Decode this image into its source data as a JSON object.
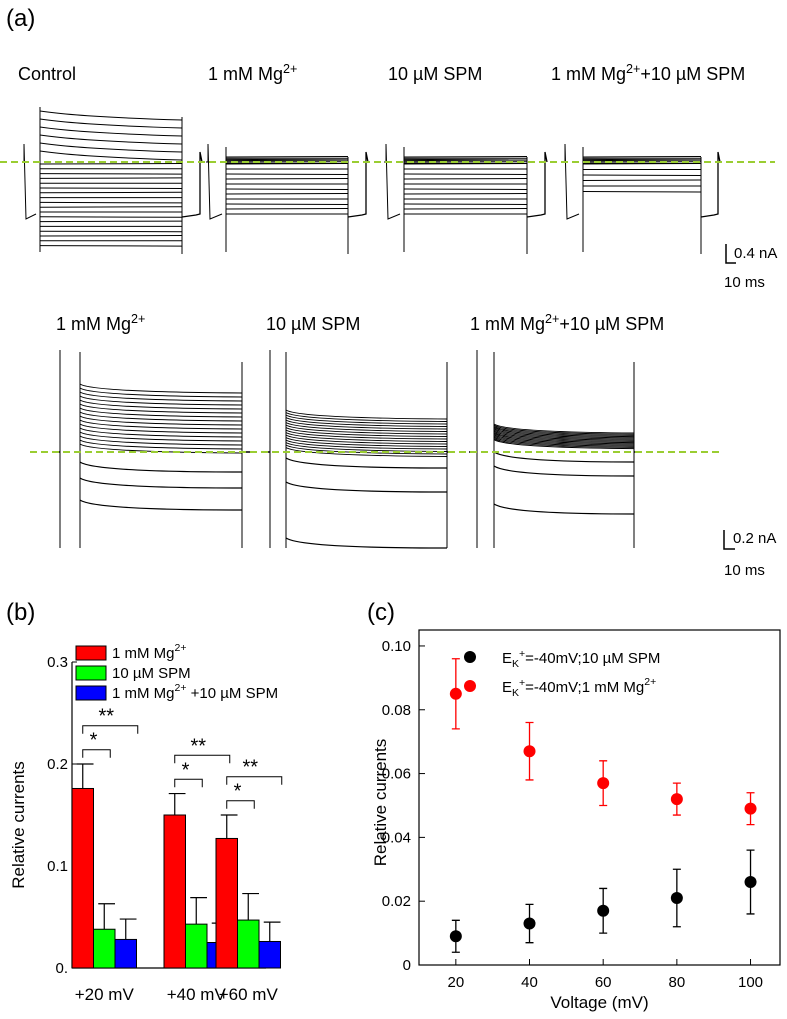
{
  "panels": {
    "a": "(a)",
    "b": "(b)",
    "c": "(c)"
  },
  "traces": {
    "top_labels": [
      "Control",
      "1 mM Mg2+",
      "10 µM SPM",
      "1 mM Mg2++10 µM SPM"
    ],
    "top_scale": {
      "current": "0.4 nA",
      "time": "10 ms"
    },
    "bottom_labels": [
      "1 mM Mg2+",
      "10 µM SPM",
      "1 mM Mg2++10 µM SPM"
    ],
    "bottom_scale": {
      "current": "0.2 nA",
      "time": "10 ms"
    },
    "colors": {
      "trace": "#000000",
      "baseline": "#9acd32"
    }
  },
  "chart_data": [
    {
      "type": "bar",
      "categories": [
        "+20 mV",
        "+40 mV",
        "+60 mV"
      ],
      "series": [
        {
          "name": "1 mM Mg2+",
          "values": [
            0.176,
            0.15,
            0.127
          ],
          "errors": [
            0.024,
            0.021,
            0.023
          ],
          "color": "#ff0000"
        },
        {
          "name": "10 µM SPM",
          "values": [
            0.038,
            0.043,
            0.047
          ],
          "errors": [
            0.025,
            0.026,
            0.026
          ],
          "color": "#00ff00"
        },
        {
          "name": "1 mM Mg2+ +10 µM SPM",
          "values": [
            0.028,
            0.025,
            0.026
          ],
          "errors": [
            0.02,
            0.019,
            0.019
          ],
          "color": "#0000ff"
        }
      ],
      "ylabel": "Relative currents",
      "ylim": [
        0,
        0.3
      ],
      "yticks": [
        "0.",
        "0.1",
        "0.2",
        "0.3"
      ],
      "significance": [
        {
          "group": 0,
          "short": "*",
          "long": "**"
        },
        {
          "group": 1,
          "short": "*",
          "long": "**"
        },
        {
          "group": 2,
          "short": "*",
          "long": "**"
        }
      ],
      "legend": "top-left"
    },
    {
      "type": "scatter",
      "x": [
        20,
        40,
        60,
        80,
        100
      ],
      "series": [
        {
          "name": "EK+=-40mV;10 µM SPM",
          "y": [
            0.009,
            0.013,
            0.017,
            0.021,
            0.026
          ],
          "errors": [
            0.005,
            0.006,
            0.007,
            0.009,
            0.01
          ],
          "color": "#000000"
        },
        {
          "name": "EK+=-40mV;1 mM Mg2+",
          "y": [
            0.085,
            0.067,
            0.057,
            0.052,
            0.049
          ],
          "errors": [
            0.011,
            0.009,
            0.007,
            0.005,
            0.005
          ],
          "color": "#ff0000"
        }
      ],
      "xlabel": "Voltage (mV)",
      "ylabel": "Relative currents",
      "xlim": [
        10,
        108
      ],
      "ylim": [
        0,
        0.105
      ],
      "xticks": [
        20,
        40,
        60,
        80,
        100
      ],
      "yticks": [
        "0",
        "0.02",
        "0.04",
        "0.06",
        "0.08",
        "0.10"
      ],
      "legend": "top-left"
    }
  ]
}
